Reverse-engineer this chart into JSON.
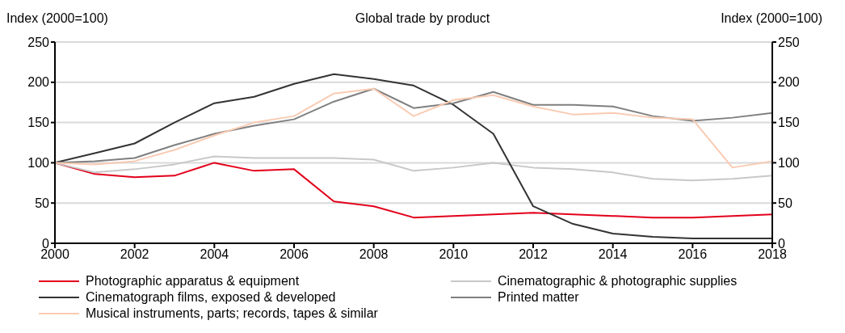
{
  "chart_data": {
    "type": "line",
    "title": "Global trade by product",
    "ylabel": "Index (2000=100)",
    "y2label": "Index (2000=100)",
    "x": [
      2000,
      2001,
      2002,
      2003,
      2004,
      2005,
      2006,
      2007,
      2008,
      2009,
      2010,
      2011,
      2012,
      2013,
      2014,
      2015,
      2016,
      2017,
      2018
    ],
    "xlim": [
      2000,
      2018
    ],
    "xticks": [
      2000,
      2002,
      2004,
      2006,
      2008,
      2010,
      2012,
      2014,
      2016,
      2018
    ],
    "ylim": [
      0,
      250
    ],
    "yticks": [
      0,
      50,
      100,
      150,
      200,
      250
    ],
    "y2lim": [
      0,
      250
    ],
    "y2ticks": [
      0,
      50,
      100,
      150,
      200,
      250
    ],
    "grid": "y",
    "legend": "bottom",
    "marker": "none",
    "line_style": "solid",
    "series": [
      {
        "name": "Photographic apparatus & equipment",
        "color": "#e3001b",
        "values": [
          100,
          86,
          82,
          84,
          100,
          90,
          92,
          52,
          46,
          32,
          34,
          36,
          38,
          36,
          34,
          32,
          32,
          34,
          36
        ]
      },
      {
        "name": "Cinematographic & photographic supplies",
        "color": "#c8c8c8",
        "values": [
          100,
          88,
          92,
          98,
          108,
          106,
          106,
          106,
          104,
          90,
          94,
          100,
          94,
          92,
          88,
          80,
          78,
          80,
          84
        ]
      },
      {
        "name": "Cinematograph films, exposed & developed",
        "color": "#333333",
        "values": [
          100,
          112,
          124,
          150,
          174,
          182,
          198,
          210,
          204,
          196,
          172,
          136,
          46,
          24,
          12,
          8,
          6,
          6,
          6
        ]
      },
      {
        "name": "Printed matter",
        "color": "#7f7f7f",
        "values": [
          100,
          102,
          106,
          122,
          136,
          146,
          154,
          176,
          192,
          168,
          174,
          188,
          172,
          172,
          170,
          158,
          152,
          156,
          162
        ]
      },
      {
        "name": "Musical instruments, parts; records, tapes & similar",
        "color": "#f9cbb3",
        "values": [
          100,
          98,
          102,
          116,
          134,
          150,
          158,
          186,
          192,
          158,
          178,
          184,
          170,
          160,
          162,
          156,
          154,
          94,
          102
        ]
      }
    ]
  }
}
